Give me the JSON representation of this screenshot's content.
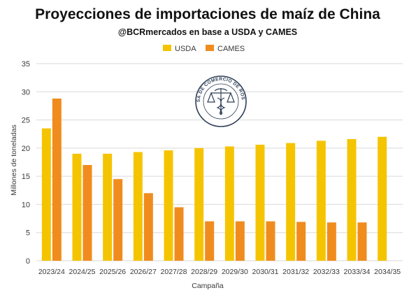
{
  "chart_data": {
    "type": "bar",
    "title": "Proyecciones de importaciones de maíz de China",
    "subtitle": "@BCRmercados en base a USDA y CAMES",
    "xlabel": "Campaña",
    "ylabel": "Millones de toneladas",
    "ylim": [
      0,
      35
    ],
    "yticks": [
      "0",
      "5",
      "10",
      "15",
      "20",
      "25",
      "30",
      "35"
    ],
    "grid": true,
    "legend_position": "top-center",
    "categories": [
      "2023/24",
      "2024/25",
      "2025/26",
      "2026/27",
      "2027/28",
      "2028/29",
      "2029/30",
      "2030/31",
      "2031/32",
      "2032/33",
      "2033/34",
      "2034/35"
    ],
    "series": [
      {
        "name": "USDA",
        "color": "#f5c400",
        "values": [
          23.5,
          19.0,
          19.0,
          19.3,
          19.6,
          20.0,
          20.3,
          20.6,
          20.9,
          21.3,
          21.6,
          22.0
        ]
      },
      {
        "name": "CAMES",
        "color": "#f08c1e",
        "values": [
          28.8,
          17.0,
          14.5,
          12.0,
          9.5,
          7.0,
          7.0,
          7.0,
          6.9,
          6.8,
          6.8,
          null
        ]
      }
    ]
  },
  "logo": {
    "text": "BOLSA DE COMERCIO DE ROSARIO",
    "icon": "scales-caduceus-seal-icon"
  }
}
